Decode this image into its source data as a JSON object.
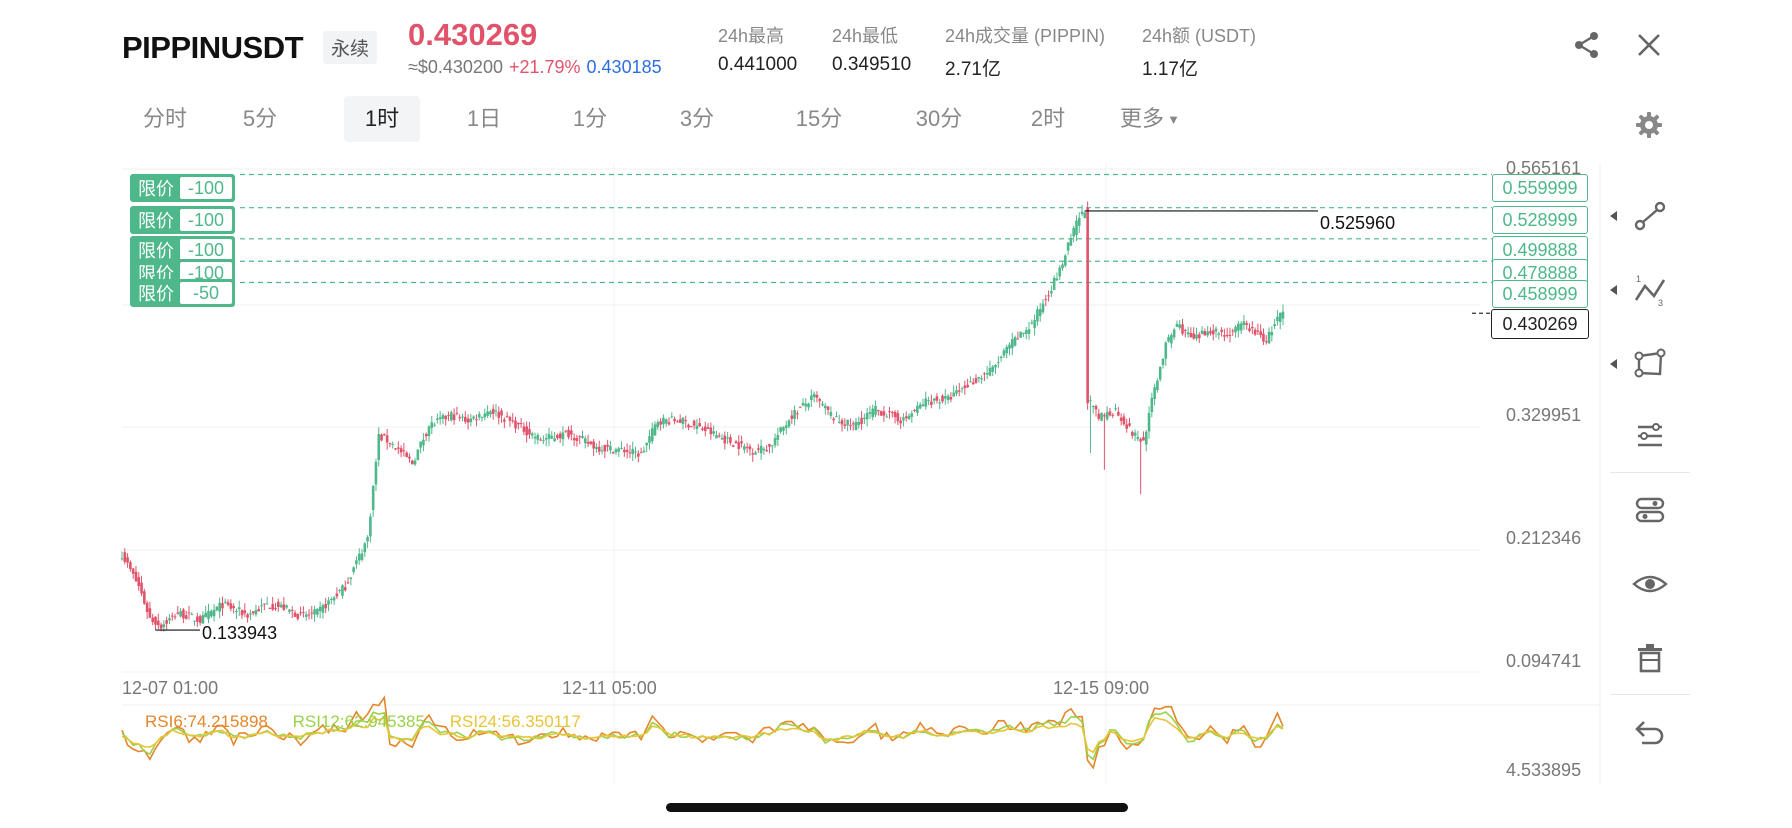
{
  "header": {
    "symbol": "PIPPINUSDT",
    "contract_type": "永续",
    "last_price": "0.430269",
    "usd_price": "≈$0.430200",
    "change_pct": "+21.79%",
    "mark_price": "0.430185",
    "stats": [
      {
        "label": "24h最高",
        "value": "0.441000"
      },
      {
        "label": "24h最低",
        "value": "0.349510"
      },
      {
        "label": "24h成交量 (PIPPIN)",
        "value": "2.71亿"
      },
      {
        "label": "24h额 (USDT)",
        "value": "1.17亿"
      }
    ],
    "icons": {
      "share": "share-icon",
      "close": "close-icon",
      "settings": "gear-icon"
    }
  },
  "timeframes": {
    "items": [
      "分时",
      "5分",
      "1时",
      "1日",
      "1分",
      "3分",
      "15分",
      "30分",
      "2时",
      "更多"
    ],
    "active": "1时"
  },
  "orders": [
    {
      "type": "限价",
      "qty": "-100",
      "price": "0.559999"
    },
    {
      "type": "限价",
      "qty": "-100",
      "price": "0.528999"
    },
    {
      "type": "限价",
      "qty": "-100",
      "price": "0.499888"
    },
    {
      "type": "限价",
      "qty": "-100",
      "price": "0.478888"
    },
    {
      "type": "限价",
      "qty": "-50",
      "price": "0.458999"
    }
  ],
  "y_axis_labels": [
    "0.565161",
    "0.329951",
    "0.212346",
    "0.094741"
  ],
  "x_axis_labels": [
    "12-07 01:00",
    "12-11 05:00",
    "12-15 09:00"
  ],
  "annotations": {
    "high": "0.525960",
    "low": "0.133943",
    "last": "0.430269"
  },
  "rsi": {
    "labels": [
      "RSI6:74.215898",
      "RSI12:62.945385",
      "RSI24:56.350117"
    ],
    "axis_label": "4.533895",
    "colors": [
      "#e5862b",
      "#9ad14a",
      "#e8c43a"
    ]
  },
  "colors": {
    "up": "#4fb88b",
    "down": "#e0536a",
    "order_line": "#4fb88b"
  },
  "toolbar": {
    "icons": [
      "line-tool-icon",
      "fib-tool-icon",
      "shape-tool-icon",
      "sliders-icon",
      "indicator-settings-icon",
      "eye-icon",
      "trash-icon",
      "undo-icon"
    ]
  }
}
